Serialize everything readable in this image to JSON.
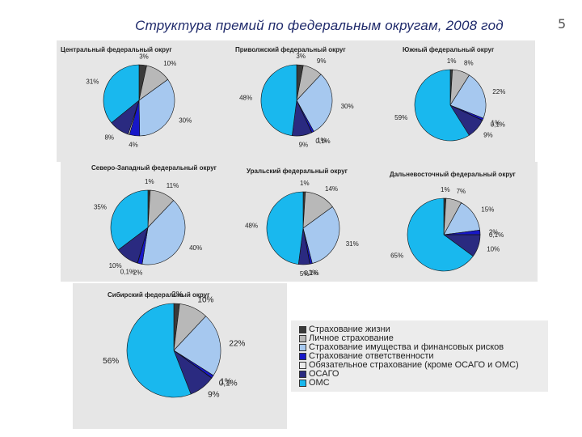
{
  "title": "Структура премий по федеральным округам, 2008 год",
  "page_number": "5",
  "colors": {
    "life": "#3a3a3a",
    "personal": "#b8b8b8",
    "property": "#a6c8ef",
    "liability": "#1717c8",
    "other_mandatory": "#e9e9e9",
    "osago": "#2a2a80",
    "oms": "#19b8ee"
  },
  "legend": [
    {
      "key": "life",
      "label": "Страхование жизни"
    },
    {
      "key": "personal",
      "label": "Личное страхование"
    },
    {
      "key": "property",
      "label": "Страхование имущества и финансовых рисков"
    },
    {
      "key": "liability",
      "label": "Страхование ответственности"
    },
    {
      "key": "other_mandatory",
      "label": "Обязательное страхование (кроме ОСАГО и ОМС)"
    },
    {
      "key": "osago",
      "label": "ОСАГО"
    },
    {
      "key": "oms",
      "label": "ОМС"
    }
  ],
  "chart_data": [
    {
      "type": "pie",
      "title": "Центральный федеральный округ",
      "slices": [
        {
          "key": "life",
          "value": 3,
          "label": "3%"
        },
        {
          "key": "personal",
          "value": 10,
          "label": "10%"
        },
        {
          "key": "property",
          "value": 30,
          "label": "30%"
        },
        {
          "key": "liability",
          "value": 4,
          "label": "4%"
        },
        {
          "key": "other_mandatory",
          "value": 0.5,
          "label": ""
        },
        {
          "key": "osago",
          "value": 8,
          "label": "8%"
        },
        {
          "key": "oms",
          "value": 31,
          "label": "31%"
        }
      ]
    },
    {
      "type": "pie",
      "title": "Приволжский федеральный округ",
      "slices": [
        {
          "key": "life",
          "value": 3,
          "label": "3%"
        },
        {
          "key": "personal",
          "value": 9,
          "label": "9%"
        },
        {
          "key": "property",
          "value": 30,
          "label": "30%"
        },
        {
          "key": "liability",
          "value": 1,
          "label": "1%"
        },
        {
          "key": "other_mandatory",
          "value": 0.1,
          "label": "0,1%"
        },
        {
          "key": "osago",
          "value": 9,
          "label": "9%"
        },
        {
          "key": "oms",
          "value": 48,
          "label": "48%"
        }
      ]
    },
    {
      "type": "pie",
      "title": "Южный федеральный округ",
      "slices": [
        {
          "key": "life",
          "value": 1,
          "label": "1%"
        },
        {
          "key": "personal",
          "value": 8,
          "label": "8%"
        },
        {
          "key": "property",
          "value": 22,
          "label": "22%"
        },
        {
          "key": "liability",
          "value": 1,
          "label": "1%"
        },
        {
          "key": "other_mandatory",
          "value": 0.1,
          "label": "0,1%"
        },
        {
          "key": "osago",
          "value": 9,
          "label": "9%"
        },
        {
          "key": "oms",
          "value": 59,
          "label": "59%"
        }
      ]
    },
    {
      "type": "pie",
      "title": "Северо-Западный федеральный округ",
      "slices": [
        {
          "key": "life",
          "value": 1,
          "label": "1%"
        },
        {
          "key": "personal",
          "value": 11,
          "label": "11%"
        },
        {
          "key": "property",
          "value": 40,
          "label": "40%"
        },
        {
          "key": "liability",
          "value": 2,
          "label": "2%"
        },
        {
          "key": "other_mandatory",
          "value": 0.1,
          "label": "0,1%"
        },
        {
          "key": "osago",
          "value": 10,
          "label": "10%"
        },
        {
          "key": "oms",
          "value": 35,
          "label": "35%"
        }
      ]
    },
    {
      "type": "pie",
      "title": "Уральский федеральный округ",
      "slices": [
        {
          "key": "life",
          "value": 1,
          "label": "1%"
        },
        {
          "key": "personal",
          "value": 14,
          "label": "14%"
        },
        {
          "key": "property",
          "value": 31,
          "label": "31%"
        },
        {
          "key": "liability",
          "value": 1,
          "label": "1%"
        },
        {
          "key": "other_mandatory",
          "value": 0.1,
          "label": "0,1%"
        },
        {
          "key": "osago",
          "value": 5,
          "label": "5%"
        },
        {
          "key": "oms",
          "value": 48,
          "label": "48%"
        }
      ]
    },
    {
      "type": "pie",
      "title": "Дальневосточный федеральный округ",
      "slices": [
        {
          "key": "life",
          "value": 1,
          "label": "1%"
        },
        {
          "key": "personal",
          "value": 7,
          "label": "7%"
        },
        {
          "key": "property",
          "value": 15,
          "label": "15%"
        },
        {
          "key": "liability",
          "value": 2,
          "label": "2%"
        },
        {
          "key": "other_mandatory",
          "value": 0.1,
          "label": "0,1%"
        },
        {
          "key": "osago",
          "value": 10,
          "label": "10%"
        },
        {
          "key": "oms",
          "value": 65,
          "label": "65%"
        }
      ]
    },
    {
      "type": "pie",
      "title": "Сибирский федеральный округ",
      "slices": [
        {
          "key": "life",
          "value": 2,
          "label": "2%"
        },
        {
          "key": "personal",
          "value": 10,
          "label": "10%"
        },
        {
          "key": "property",
          "value": 22,
          "label": "22%"
        },
        {
          "key": "liability",
          "value": 1,
          "label": "1%"
        },
        {
          "key": "other_mandatory",
          "value": 0.1,
          "label": "0,1%"
        },
        {
          "key": "osago",
          "value": 9,
          "label": "9%"
        },
        {
          "key": "oms",
          "value": 56,
          "label": "56%"
        }
      ]
    }
  ]
}
